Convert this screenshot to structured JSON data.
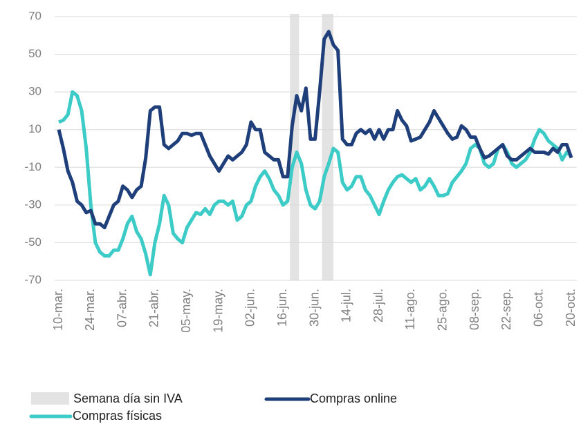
{
  "chart_data": {
    "type": "line",
    "categories": [
      "10-mar.",
      null,
      null,
      null,
      null,
      null,
      null,
      "24-mar.",
      null,
      null,
      null,
      null,
      null,
      null,
      "07-abr.",
      null,
      null,
      null,
      null,
      null,
      null,
      "21-abr.",
      null,
      null,
      null,
      null,
      null,
      null,
      "05-may.",
      null,
      null,
      null,
      null,
      null,
      null,
      "19-may.",
      null,
      null,
      null,
      null,
      null,
      null,
      "02-jun.",
      null,
      null,
      null,
      null,
      null,
      null,
      "16-jun.",
      null,
      null,
      null,
      null,
      null,
      null,
      "30-jun.",
      null,
      null,
      null,
      null,
      null,
      null,
      "14-jul.",
      null,
      null,
      null,
      null,
      null,
      null,
      "28-jul.",
      null,
      null,
      null,
      null,
      null,
      null,
      "11-ago.",
      null,
      null,
      null,
      null,
      null,
      null,
      "25-ago.",
      null,
      null,
      null,
      null,
      null,
      null,
      "08-sep.",
      null,
      null,
      null,
      null,
      null,
      null,
      "22-sep.",
      null,
      null,
      null,
      null,
      null,
      null,
      "06-oct.",
      null,
      null,
      null,
      null,
      null,
      null,
      "20-oct."
    ],
    "series": [
      {
        "name": "Compras online",
        "color": "#1f3f7a",
        "values": [
          10,
          0,
          -12,
          -18,
          -28,
          -30,
          -34,
          -33,
          -40,
          -40,
          -42,
          -36,
          -30,
          -28,
          -20,
          -22,
          -26,
          -22,
          -20,
          -5,
          20,
          22,
          22,
          2,
          0,
          2,
          4,
          8,
          8,
          7,
          8,
          8,
          2,
          -4,
          -8,
          -12,
          -8,
          -4,
          -6,
          -4,
          -2,
          2,
          14,
          10,
          10,
          -2,
          -4,
          -6,
          -6,
          -15,
          -15,
          12,
          28,
          20,
          32,
          5,
          5,
          30,
          58,
          62,
          55,
          52,
          5,
          2,
          2,
          8,
          10,
          8,
          10,
          5,
          10,
          5,
          10,
          10,
          20,
          15,
          12,
          4,
          5,
          6,
          10,
          14,
          20,
          16,
          12,
          8,
          5,
          6,
          12,
          10,
          6,
          6,
          0,
          -5,
          -4,
          -2,
          0,
          2,
          -4,
          -6,
          -6,
          -4,
          -2,
          0,
          -2,
          -2,
          -2,
          -3,
          0,
          -2,
          2,
          2,
          -5
        ]
      },
      {
        "name": "Compras físicas",
        "color": "#3ccbc6",
        "values": [
          14,
          15,
          18,
          30,
          28,
          20,
          0,
          -30,
          -50,
          -55,
          -57,
          -57,
          -54,
          -54,
          -48,
          -40,
          -36,
          -44,
          -48,
          -56,
          -67,
          -50,
          -40,
          -25,
          -30,
          -45,
          -48,
          -50,
          -42,
          -38,
          -34,
          -35,
          -32,
          -35,
          -30,
          -28,
          -28,
          -30,
          -28,
          -38,
          -36,
          -30,
          -28,
          -20,
          -15,
          -12,
          -16,
          -22,
          -25,
          -30,
          -28,
          -10,
          -2,
          -8,
          -22,
          -30,
          -32,
          -28,
          -15,
          -8,
          0,
          -2,
          -18,
          -22,
          -20,
          -15,
          -15,
          -22,
          -25,
          -30,
          -35,
          -28,
          -22,
          -18,
          -15,
          -14,
          -16,
          -18,
          -16,
          -22,
          -20,
          -16,
          -20,
          -25,
          -25,
          -24,
          -18,
          -15,
          -12,
          -8,
          0,
          2,
          0,
          -8,
          -10,
          -8,
          0,
          2,
          -2,
          -8,
          -10,
          -8,
          -6,
          -2,
          5,
          10,
          8,
          4,
          2,
          0,
          -6,
          -2,
          -4
        ]
      }
    ],
    "bands": {
      "name": "Semana día sin IVA",
      "color": "#e3e3e3",
      "spans": [
        [
          50.5,
          52.5
        ],
        [
          57.5,
          60
        ]
      ]
    },
    "ylim": [
      -70,
      70
    ],
    "yticks": [
      -70,
      -50,
      -30,
      -10,
      10,
      30,
      50,
      70
    ],
    "grid": true
  }
}
